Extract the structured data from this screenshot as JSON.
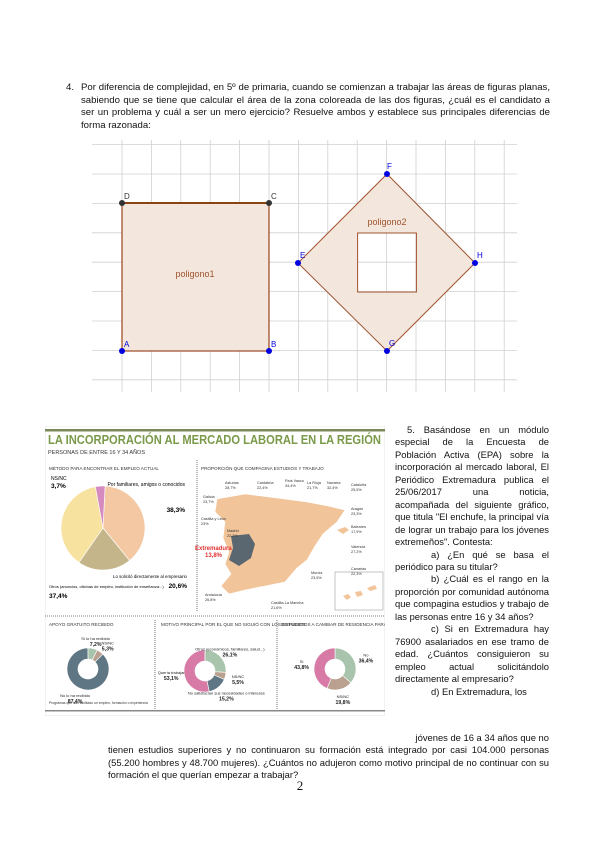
{
  "q4": {
    "number": "4.",
    "text": "Por diferencia de complejidad, en 5º de primaria, cuando se comienzan a trabajar las áreas de figuras planas, sabiendo que se tiene que calcular el área de la zona coloreada de las dos figuras, ¿cuál es el candidato a ser un problema y cuál a ser un mero ejercicio? Resuelve ambos y establece sus principales diferencias de forma razonada:"
  },
  "geometry": {
    "polygon1": {
      "label": "poligono1",
      "vertices": [
        "A",
        "B",
        "C",
        "D"
      ],
      "vertex_labels": {
        "A": "A",
        "B": "B",
        "C": "C",
        "D": "D"
      }
    },
    "polygon2": {
      "label": "poligono2",
      "vertices": [
        "E",
        "F",
        "H",
        "G"
      ],
      "vertex_labels": {
        "E": "E",
        "F": "F",
        "G": "G",
        "H": "H"
      }
    },
    "colors": {
      "fill": "#f2e6dd",
      "stroke": "#a0522d",
      "point_blue": "#0000e0",
      "point_dark": "#333333",
      "grid": "#cfcfcf"
    }
  },
  "infographic": {
    "title": "LA INCORPORACIÓN AL MERCADO LABORAL EN LA REGIÓN",
    "subtitle": "PERSONAS DE ENTRE 16 Y 34 AÑOS",
    "title_color": "#7a9a4a",
    "pie": {
      "heading": "MÉTODO PARA ENCONTRAR EL EMPLEO ACTUAL",
      "slices": [
        {
          "label": "Por familiares, amigos o conocidos",
          "value": "38,3%",
          "pct": 38.3,
          "color": "#f4c8a2"
        },
        {
          "label": "Lo solicitó directamente al empresario",
          "value": "20,6%",
          "pct": 20.6,
          "color": "#c4b58a"
        },
        {
          "label": "Otros (anuncios, oficinas de empleo, institución de enseñanza...)",
          "value": "37,4%",
          "pct": 37.4,
          "color": "#f7e2a0"
        },
        {
          "label": "NS/NC",
          "value": "3,7%",
          "pct": 3.7,
          "color": "#d68bc0"
        }
      ]
    },
    "map": {
      "heading": "PROPORCIÓN QUE COMPAGINA ESTUDIOS Y TRABAJO",
      "regions": [
        {
          "name": "Asturias",
          "value": "28,7%"
        },
        {
          "name": "Cantabria",
          "value": "22,4%"
        },
        {
          "name": "País Vasco",
          "value": "34,4%"
        },
        {
          "name": "La Rioja",
          "value": "21,7%"
        },
        {
          "name": "Navarra",
          "value": "32,4%"
        },
        {
          "name": "Cataluña",
          "value": "25,5%"
        },
        {
          "name": "Galicia",
          "value": "23,7%"
        },
        {
          "name": "Aragón",
          "value": "23,3%"
        },
        {
          "name": "Castilla y León",
          "value": "23%"
        },
        {
          "name": "Baleares",
          "value": "17,9%"
        },
        {
          "name": "Madrid",
          "value": "22,3%"
        },
        {
          "name": "Valencia",
          "value": "27,2%"
        },
        {
          "name": "Extremadura",
          "value": "13,8%"
        },
        {
          "name": "Murcia",
          "value": "23,5%"
        },
        {
          "name": "Canarias",
          "value": "22,3%"
        },
        {
          "name": "Andalucía",
          "value": "26,8%"
        },
        {
          "name": "Castilla-La Mancha",
          "value": "21,6%"
        }
      ],
      "colors": {
        "land": "#f2c49a",
        "highlight": "#5a6670",
        "highlight_text": "#e03030"
      }
    },
    "donuts": [
      {
        "heading": "APOYO GRATUITO RECIBIDO",
        "slices": [
          {
            "label": "Sí lo ha recibido",
            "value": "7,2%",
            "pct": 7.2,
            "color": "#a9c4ad"
          },
          {
            "label": "NS/NC",
            "value": "5,3%",
            "pct": 5.3,
            "color": "#b9a08f"
          },
          {
            "label": "No lo ha recibido",
            "value": "87,4%",
            "pct": 87.4,
            "color": "#5f7785"
          }
        ],
        "note": "Programas que han facilitado un empleo, formación o experiencia"
      },
      {
        "heading": "MOTIVO PRINCIPAL POR EL QUE NO SIGUIÓ CON LOS ESTUDIOS",
        "slices": [
          {
            "label": "Otros (económicos, familiares, salud...)",
            "value": "26,1%",
            "pct": 26.1,
            "color": "#a9c4ad"
          },
          {
            "label": "NS/NC",
            "value": "5,5%",
            "pct": 5.5,
            "color": "#b9a08f"
          },
          {
            "label": "No satisfacían sus necesidades o intereses",
            "value": "15,2%",
            "pct": 15.2,
            "color": "#5f7785"
          },
          {
            "label": "Quería trabajar",
            "value": "53,1%",
            "pct": 53.1,
            "color": "#d77aa6"
          }
        ]
      },
      {
        "heading": "DISPUESTOS A CAMBIAR DE RESIDENCIA PARA TENER EMPLEO",
        "slices": [
          {
            "label": "No",
            "value": "36,4%",
            "pct": 36.4,
            "color": "#a9c4ad"
          },
          {
            "label": "NS/NC",
            "value": "19,8%",
            "pct": 19.8,
            "color": "#b9a08f"
          },
          {
            "label": "Sí",
            "value": "43,8%",
            "pct": 43.8,
            "color": "#d77aa6"
          }
        ]
      }
    ]
  },
  "q5": {
    "intro": "5. Basándose en un módulo especial de la Encuesta de Población Activa (EPA) sobre la incorporación al mercado laboral, El Periódico Extremadura publica el 25/06/2017 una noticia, acompañada del siguiente gráfico, que titula \"El enchufe, la principal vía de lograr un trabajo para los jóvenes extremeños\". Contesta:",
    "a": "a) ¿En qué se basa el periódico para su titular?",
    "b": "b) ¿Cuál es el rango en la proporción por comunidad autónoma que compagina estudios y trabajo de las personas entre 16 y 34 años?",
    "c": "c) Si en Extremadura hay 76900 asalariados en ese tramo de edad. ¿Cuántos consiguieron su empleo actual solicitándolo directamente al empresario?",
    "d_start": "d) En Extremadura, los",
    "d_line2": "jóvenes de 16 a 34 años que no",
    "d_rest": "tienen estudios superiores y no continuaron su formación está integrado por casi 104.000 personas (55.200 hombres y 48.700 mujeres). ¿Cuántos no adujeron como motivo principal de no continuar con su formación el que querían empezar a trabajar?"
  },
  "page_number": "2"
}
